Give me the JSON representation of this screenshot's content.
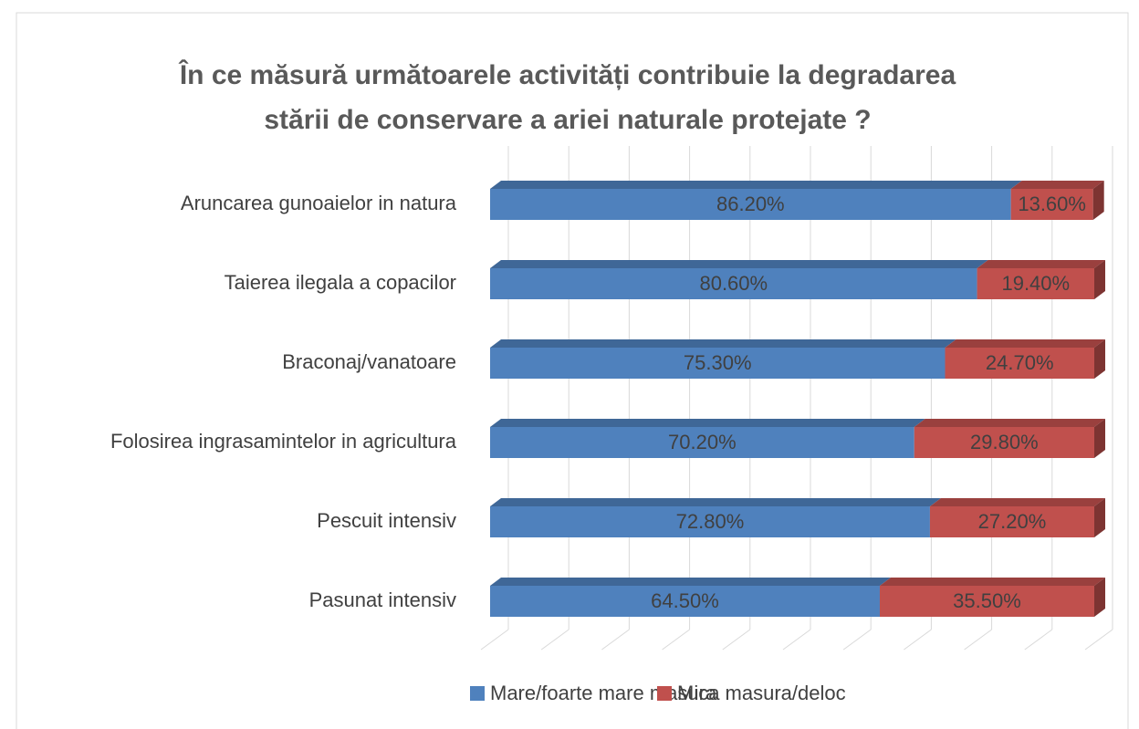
{
  "chart_data": {
    "type": "bar3d_stacked_horizontal",
    "title": [
      "În ce măsură următoarele activități contribuie la degradarea",
      "stării de conservare a ariei naturale protejate ?"
    ],
    "categories": [
      "Aruncarea gunoaielor in natura",
      "Taierea ilegala a copacilor",
      "Braconaj/vanatoare",
      "Folosirea ingrasamintelor in agricultura",
      "Pescuit intensiv",
      "Pasunat intensiv"
    ],
    "series": [
      {
        "name": "Mare/foarte mare masura",
        "color": "#4f81bd",
        "values": [
          86.2,
          80.6,
          75.3,
          70.2,
          72.8,
          64.5
        ],
        "value_labels": [
          "86.20%",
          "80.60%",
          "75.30%",
          "70.20%",
          "72.80%",
          "64.50%"
        ]
      },
      {
        "name": "Mica masura/deloc",
        "color": "#c0504d",
        "values": [
          13.6,
          19.4,
          24.7,
          29.8,
          27.2,
          35.5
        ],
        "value_labels": [
          "13.60%",
          "19.40%",
          "24.70%",
          "29.80%",
          "27.20%",
          "35.50%"
        ]
      }
    ],
    "xlim": [
      0,
      100
    ],
    "xticks": [
      0,
      10,
      20,
      30,
      40,
      50,
      60,
      70,
      80,
      90,
      100
    ],
    "grid": true,
    "legend": "bottom"
  }
}
